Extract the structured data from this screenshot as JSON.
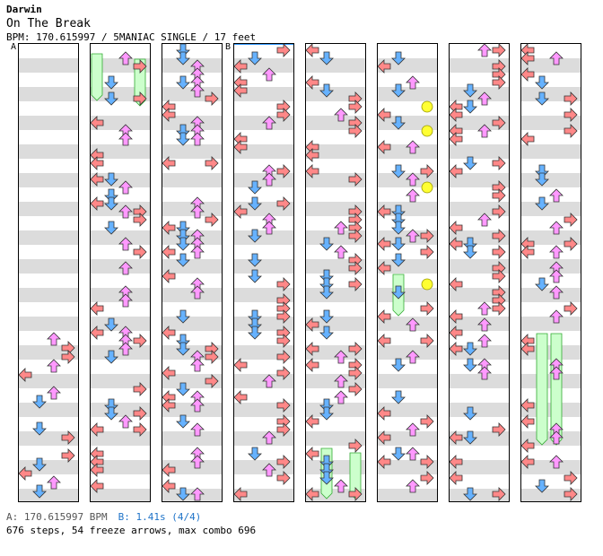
{
  "song": {
    "artist": "Darwin",
    "title": "On The Break",
    "info": "BPM: 170.615997 / 5MANIAC SINGLE / 17 feet"
  },
  "markers": {
    "a": "A",
    "b": "B"
  },
  "footer": {
    "bpm_line": "A: 170.615997 BPM",
    "stop_line": "B: 1.41s (4/4)",
    "stats": "676 steps, 54 freeze arrows, max combo 696"
  },
  "colors": {
    "left": "#ff8888",
    "down": "#66b2ff",
    "up": "#ff99ff",
    "right": "#ff8888",
    "mine": "#ffff33",
    "freeze": "#ccffcc",
    "freeze_border": "#33aa33",
    "marker": "#3399ff"
  }
}
